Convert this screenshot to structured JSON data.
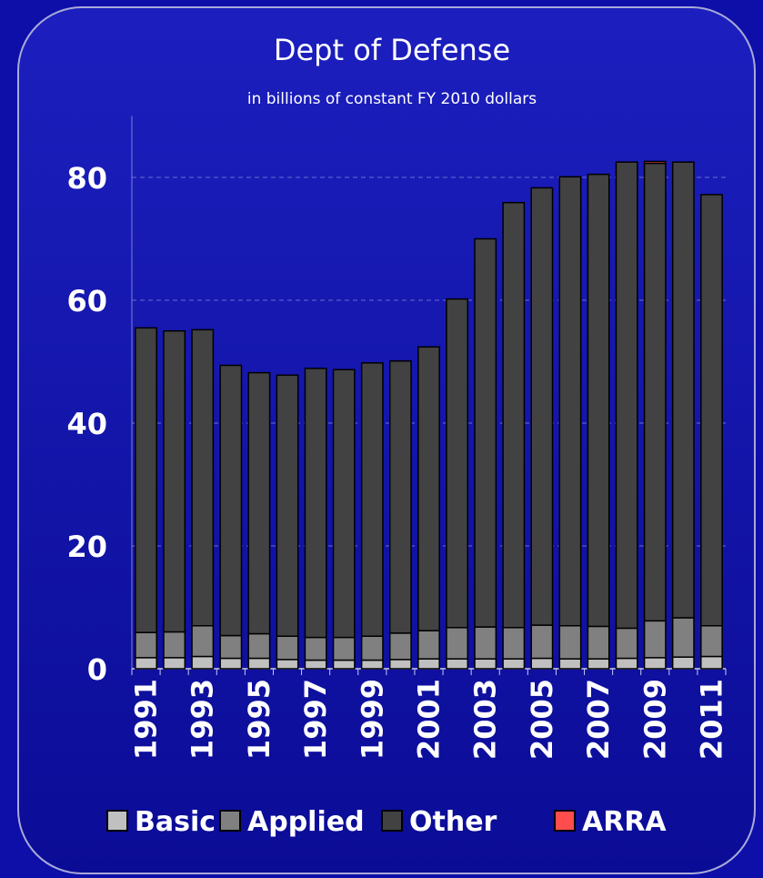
{
  "chart_data": {
    "type": "bar",
    "stacked": true,
    "title": "Dept of Defense",
    "subtitle": "in billions of constant FY 2010 dollars",
    "categories": [
      "1991",
      "1992",
      "1993",
      "1994",
      "1995",
      "1996",
      "1997",
      "1998",
      "1999",
      "2000",
      "2001",
      "2002",
      "2003",
      "2004",
      "2005",
      "2006",
      "2007",
      "2008",
      "2009",
      "2010",
      "2011"
    ],
    "x_tick_labels": [
      "1991",
      "",
      "1993",
      "",
      "1995",
      "",
      "1997",
      "",
      "1999",
      "",
      "2001",
      "",
      "2003",
      "",
      "2005",
      "",
      "2007",
      "",
      "2009",
      "",
      "2011"
    ],
    "series": [
      {
        "name": "Basic",
        "color": "#c0c0c0",
        "values": [
          1.8,
          1.8,
          2.0,
          1.7,
          1.7,
          1.5,
          1.4,
          1.4,
          1.4,
          1.5,
          1.6,
          1.6,
          1.6,
          1.6,
          1.7,
          1.6,
          1.6,
          1.7,
          1.8,
          1.9,
          2.0
        ]
      },
      {
        "name": "Applied",
        "color": "#808080",
        "values": [
          4.1,
          4.2,
          5.0,
          3.7,
          4.0,
          3.8,
          3.7,
          3.7,
          3.9,
          4.3,
          4.6,
          5.1,
          5.2,
          5.1,
          5.4,
          5.4,
          5.3,
          4.9,
          6.0,
          6.4,
          5.0
        ]
      },
      {
        "name": "Other",
        "color": "#424242",
        "values": [
          49.6,
          49.0,
          48.2,
          44.0,
          42.5,
          42.5,
          43.8,
          43.6,
          44.5,
          44.3,
          46.2,
          53.5,
          63.2,
          69.2,
          71.2,
          73.1,
          73.6,
          75.9,
          74.5,
          74.2,
          70.2
        ]
      },
      {
        "name": "ARRA",
        "color": "#ff4d4d",
        "values": [
          0,
          0,
          0,
          0,
          0,
          0,
          0,
          0,
          0,
          0,
          0,
          0,
          0,
          0,
          0,
          0,
          0,
          0,
          0.3,
          0,
          0
        ]
      }
    ],
    "ylim": [
      0,
      90
    ],
    "y_ticks": [
      0,
      20,
      40,
      60,
      80
    ],
    "grid": "dashed horizontal",
    "legend_position": "bottom"
  }
}
